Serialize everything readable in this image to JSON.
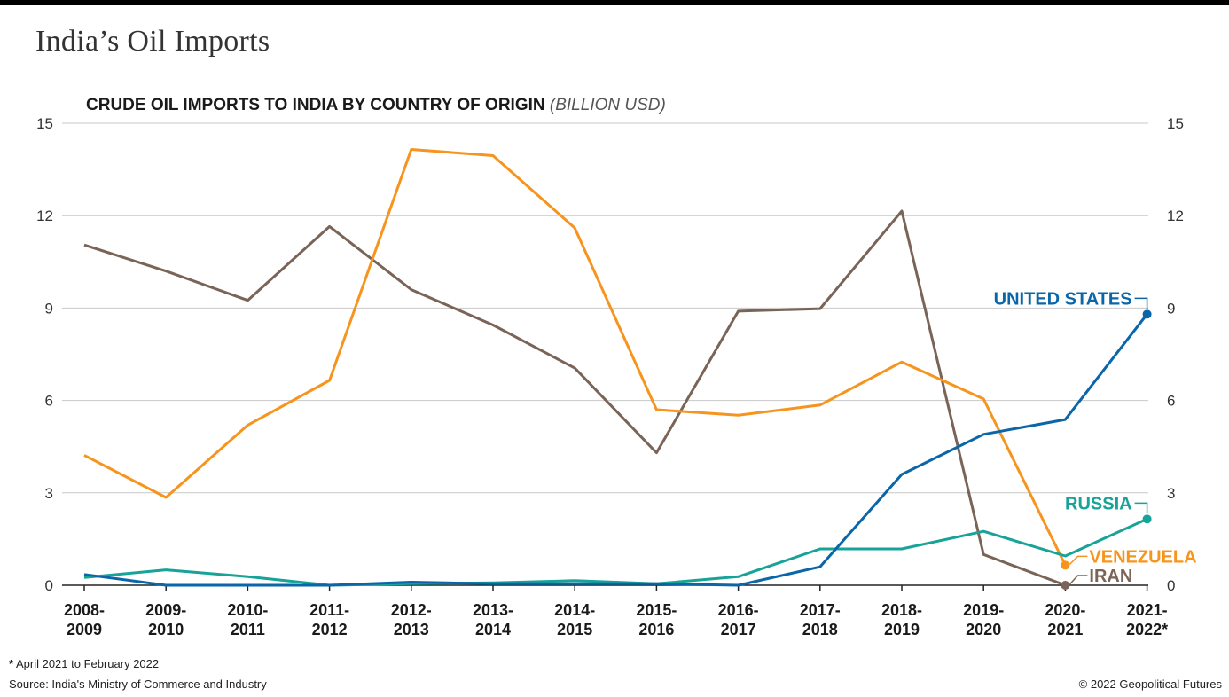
{
  "page": {
    "title": "India’s Oil Imports",
    "footnote_mark": "*",
    "footnote_text": "April 2021 to February 2022",
    "source": "Source: India's Ministry of Commerce and Industry",
    "copyright": "© 2022 Geopolitical Futures"
  },
  "chart_data": {
    "type": "line",
    "title": "CRUDE OIL IMPORTS TO INDIA BY COUNTRY OF ORIGIN",
    "unit": "(BILLION USD)",
    "categories": [
      [
        "2008-",
        "2009"
      ],
      [
        "2009-",
        "2010"
      ],
      [
        "2010-",
        "2011"
      ],
      [
        "2011-",
        "2012"
      ],
      [
        "2012-",
        "2013"
      ],
      [
        "2013-",
        "2014"
      ],
      [
        "2014-",
        "2015"
      ],
      [
        "2015-",
        "2016"
      ],
      [
        "2016-",
        "2017"
      ],
      [
        "2017-",
        "2018"
      ],
      [
        "2018-",
        "2019"
      ],
      [
        "2019-",
        "2020"
      ],
      [
        "2020-",
        "2021"
      ],
      [
        "2021-",
        "2022*"
      ]
    ],
    "ylim": [
      0,
      15
    ],
    "yticks": [
      0,
      3,
      6,
      9,
      12,
      15
    ],
    "grid": true,
    "series": [
      {
        "name": "IRAN",
        "color": "#7a6457",
        "values": [
          11.05,
          10.2,
          9.25,
          11.65,
          9.6,
          8.45,
          7.05,
          4.3,
          8.9,
          8.98,
          12.15,
          1.0,
          0.0,
          null
        ]
      },
      {
        "name": "VENEZUELA",
        "color": "#f7941d",
        "values": [
          4.22,
          2.85,
          5.2,
          6.65,
          14.15,
          13.95,
          11.6,
          5.7,
          5.52,
          5.85,
          7.25,
          6.05,
          0.65,
          null
        ]
      },
      {
        "name": "RUSSIA",
        "color": "#17a398",
        "values": [
          0.25,
          0.5,
          0.28,
          0.0,
          0.05,
          0.08,
          0.15,
          0.05,
          0.28,
          1.18,
          1.18,
          1.75,
          0.95,
          2.15
        ]
      },
      {
        "name": "UNITED STATES",
        "color": "#0a66a8",
        "values": [
          0.35,
          0.0,
          0.0,
          0.0,
          0.1,
          0.05,
          0.05,
          0.05,
          0.0,
          0.6,
          3.6,
          4.9,
          5.38,
          8.8
        ]
      }
    ]
  }
}
